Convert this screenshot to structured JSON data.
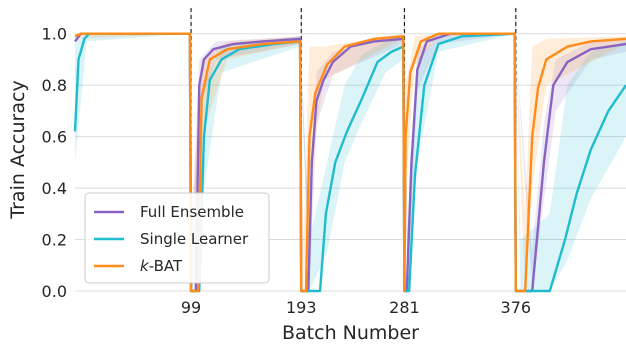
{
  "chart_data": {
    "type": "line",
    "xlabel": "Batch Number",
    "ylabel": "Train Accuracy",
    "xlim": [
      0,
      470
    ],
    "ylim": [
      0.0,
      1.1
    ],
    "grid": true,
    "legend_position": "lower-left",
    "x_ticks": [
      "99",
      "193",
      "281",
      "376"
    ],
    "y_ticks": [
      "0.0",
      "0.2",
      "0.4",
      "0.6",
      "0.8",
      "1.0"
    ],
    "boundaries": [
      99,
      193,
      281,
      376
    ],
    "series": [
      {
        "name": "Full Ensemble",
        "color": "#8a63c2",
        "points": [
          [
            0,
            0.97
          ],
          [
            5,
            1.0
          ],
          [
            98,
            1.0
          ],
          [
            99,
            0.0
          ],
          [
            103,
            0.0
          ],
          [
            106,
            0.8
          ],
          [
            110,
            0.9
          ],
          [
            118,
            0.94
          ],
          [
            135,
            0.96
          ],
          [
            160,
            0.97
          ],
          [
            192,
            0.98
          ],
          [
            193,
            0.0
          ],
          [
            199,
            0.0
          ],
          [
            202,
            0.5
          ],
          [
            206,
            0.74
          ],
          [
            212,
            0.82
          ],
          [
            220,
            0.89
          ],
          [
            235,
            0.95
          ],
          [
            255,
            0.97
          ],
          [
            280,
            0.98
          ],
          [
            281,
            0.0
          ],
          [
            283,
            0.0
          ],
          [
            287,
            0.5
          ],
          [
            292,
            0.86
          ],
          [
            300,
            0.97
          ],
          [
            320,
            1.0
          ],
          [
            375,
            1.0
          ],
          [
            376,
            0.0
          ],
          [
            390,
            0.0
          ],
          [
            400,
            0.5
          ],
          [
            408,
            0.8
          ],
          [
            420,
            0.89
          ],
          [
            440,
            0.94
          ],
          [
            470,
            0.96
          ]
        ],
        "band": [
          [
            0,
            0.97,
            0.97
          ],
          [
            98,
            1.0,
            1.0
          ],
          [
            100,
            0.0,
            0.3
          ],
          [
            106,
            0.7,
            0.9
          ],
          [
            120,
            0.9,
            0.97
          ],
          [
            192,
            0.96,
            0.99
          ],
          [
            200,
            0.0,
            0.2
          ],
          [
            206,
            0.65,
            0.85
          ],
          [
            220,
            0.84,
            0.93
          ],
          [
            280,
            0.96,
            0.99
          ],
          [
            284,
            0.0,
            0.2
          ],
          [
            292,
            0.78,
            0.94
          ],
          [
            310,
            0.96,
            1.0
          ],
          [
            375,
            1.0,
            1.0
          ],
          [
            390,
            0.0,
            0.15
          ],
          [
            400,
            0.35,
            0.65
          ],
          [
            410,
            0.7,
            0.9
          ],
          [
            440,
            0.9,
            0.97
          ],
          [
            470,
            0.93,
            0.98
          ]
        ]
      },
      {
        "name": "Single Learner",
        "color": "#1fbcce",
        "points": [
          [
            0,
            0.62
          ],
          [
            3,
            0.9
          ],
          [
            8,
            0.98
          ],
          [
            12,
            1.0
          ],
          [
            98,
            1.0
          ],
          [
            99,
            0.0
          ],
          [
            106,
            0.0
          ],
          [
            110,
            0.6
          ],
          [
            115,
            0.82
          ],
          [
            125,
            0.9
          ],
          [
            140,
            0.94
          ],
          [
            170,
            0.96
          ],
          [
            192,
            0.97
          ],
          [
            193,
            0.0
          ],
          [
            209,
            0.0
          ],
          [
            214,
            0.3
          ],
          [
            222,
            0.5
          ],
          [
            232,
            0.62
          ],
          [
            245,
            0.75
          ],
          [
            258,
            0.89
          ],
          [
            270,
            0.93
          ],
          [
            280,
            0.95
          ],
          [
            281,
            0.0
          ],
          [
            285,
            0.0
          ],
          [
            290,
            0.45
          ],
          [
            298,
            0.8
          ],
          [
            310,
            0.96
          ],
          [
            330,
            0.99
          ],
          [
            375,
            1.0
          ],
          [
            376,
            0.0
          ],
          [
            405,
            0.0
          ],
          [
            418,
            0.2
          ],
          [
            428,
            0.38
          ],
          [
            440,
            0.55
          ],
          [
            455,
            0.7
          ],
          [
            470,
            0.8
          ]
        ],
        "band": [
          [
            0,
            0.5,
            0.97
          ],
          [
            10,
            0.97,
            1.0
          ],
          [
            98,
            1.0,
            1.0
          ],
          [
            100,
            0.0,
            0.3
          ],
          [
            110,
            0.4,
            0.8
          ],
          [
            125,
            0.85,
            0.95
          ],
          [
            192,
            0.95,
            0.99
          ],
          [
            200,
            0.0,
            0.2
          ],
          [
            215,
            0.15,
            0.5
          ],
          [
            230,
            0.5,
            0.8
          ],
          [
            245,
            0.66,
            0.92
          ],
          [
            265,
            0.85,
            0.97
          ],
          [
            280,
            0.9,
            0.99
          ],
          [
            284,
            0.0,
            0.2
          ],
          [
            292,
            0.5,
            0.9
          ],
          [
            310,
            0.93,
            0.99
          ],
          [
            375,
            1.0,
            1.0
          ],
          [
            380,
            0.0,
            0.2
          ],
          [
            405,
            0.0,
            0.3
          ],
          [
            420,
            0.12,
            0.8
          ],
          [
            440,
            0.36,
            0.93
          ],
          [
            470,
            0.6,
            0.97
          ]
        ]
      },
      {
        "name": "k-BAT",
        "color": "#ff8c1a",
        "points": [
          [
            0,
            0.99
          ],
          [
            5,
            1.0
          ],
          [
            98,
            1.0
          ],
          [
            99,
            0.0
          ],
          [
            105,
            0.0
          ],
          [
            108,
            0.75
          ],
          [
            115,
            0.9
          ],
          [
            130,
            0.94
          ],
          [
            160,
            0.96
          ],
          [
            192,
            0.97
          ],
          [
            193,
            0.0
          ],
          [
            197,
            0.0
          ],
          [
            200,
            0.6
          ],
          [
            205,
            0.77
          ],
          [
            215,
            0.88
          ],
          [
            230,
            0.95
          ],
          [
            255,
            0.98
          ],
          [
            280,
            0.99
          ],
          [
            281,
            0.0
          ],
          [
            282,
            0.6
          ],
          [
            286,
            0.85
          ],
          [
            295,
            0.97
          ],
          [
            310,
            1.0
          ],
          [
            375,
            1.0
          ],
          [
            376,
            0.0
          ],
          [
            384,
            0.0
          ],
          [
            390,
            0.6
          ],
          [
            395,
            0.79
          ],
          [
            402,
            0.9
          ],
          [
            420,
            0.95
          ],
          [
            440,
            0.97
          ],
          [
            470,
            0.98
          ]
        ],
        "band": [
          [
            0,
            0.98,
            1.0
          ],
          [
            98,
            1.0,
            1.0
          ],
          [
            100,
            0.0,
            0.3
          ],
          [
            108,
            0.6,
            0.9
          ],
          [
            130,
            0.9,
            0.97
          ],
          [
            192,
            0.96,
            0.99
          ],
          [
            195,
            0.0,
            0.2
          ],
          [
            200,
            0.4,
            0.95
          ],
          [
            212,
            0.82,
            0.95
          ],
          [
            280,
            0.98,
            1.0
          ],
          [
            282,
            0.4,
            0.8
          ],
          [
            290,
            0.88,
            0.99
          ],
          [
            310,
            0.99,
            1.0
          ],
          [
            375,
            1.0,
            1.0
          ],
          [
            384,
            0.0,
            0.3
          ],
          [
            390,
            0.4,
            0.95
          ],
          [
            402,
            0.8,
            0.98
          ],
          [
            470,
            0.96,
            0.99
          ]
        ]
      }
    ]
  }
}
